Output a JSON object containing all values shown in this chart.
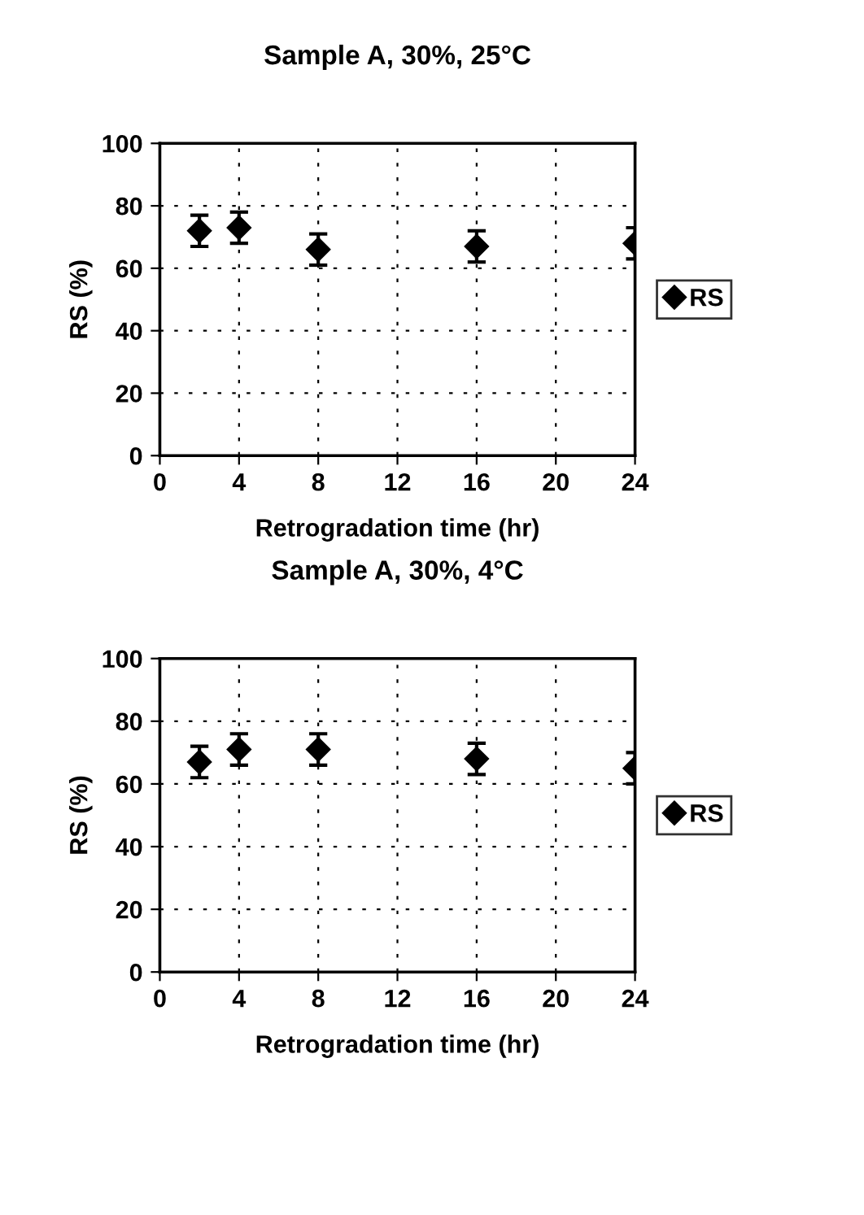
{
  "chart_data": [
    {
      "type": "scatter",
      "title": "Sample A, 30%, 25°C",
      "xlabel": "Retrogradation time (hr)",
      "ylabel": "RS (%)",
      "x": [
        2,
        4,
        8,
        16,
        24
      ],
      "series": [
        {
          "name": "RS",
          "color": "#000000",
          "values": [
            72,
            73,
            66,
            67,
            68
          ],
          "errors": [
            5,
            5,
            5,
            5,
            5
          ]
        }
      ],
      "xlim": [
        0,
        24
      ],
      "xticks": [
        0,
        4,
        8,
        12,
        16,
        20,
        24
      ],
      "ylim": [
        0,
        100
      ],
      "yticks": [
        0,
        20,
        40,
        60,
        80,
        100
      ],
      "grid": true,
      "legend": "right",
      "marker": "diamond"
    },
    {
      "type": "scatter",
      "title": "Sample A, 30%, 4°C",
      "xlabel": "Retrogradation time (hr)",
      "ylabel": "RS (%)",
      "x": [
        2,
        4,
        8,
        16,
        24
      ],
      "series": [
        {
          "name": "RS",
          "color": "#000000",
          "values": [
            67,
            71,
            71,
            68,
            65
          ],
          "errors": [
            5,
            5,
            5,
            5,
            5
          ]
        }
      ],
      "xlim": [
        0,
        24
      ],
      "xticks": [
        0,
        4,
        8,
        12,
        16,
        20,
        24
      ],
      "ylim": [
        0,
        100
      ],
      "yticks": [
        0,
        20,
        40,
        60,
        80,
        100
      ],
      "grid": true,
      "legend": "right",
      "marker": "diamond"
    }
  ]
}
